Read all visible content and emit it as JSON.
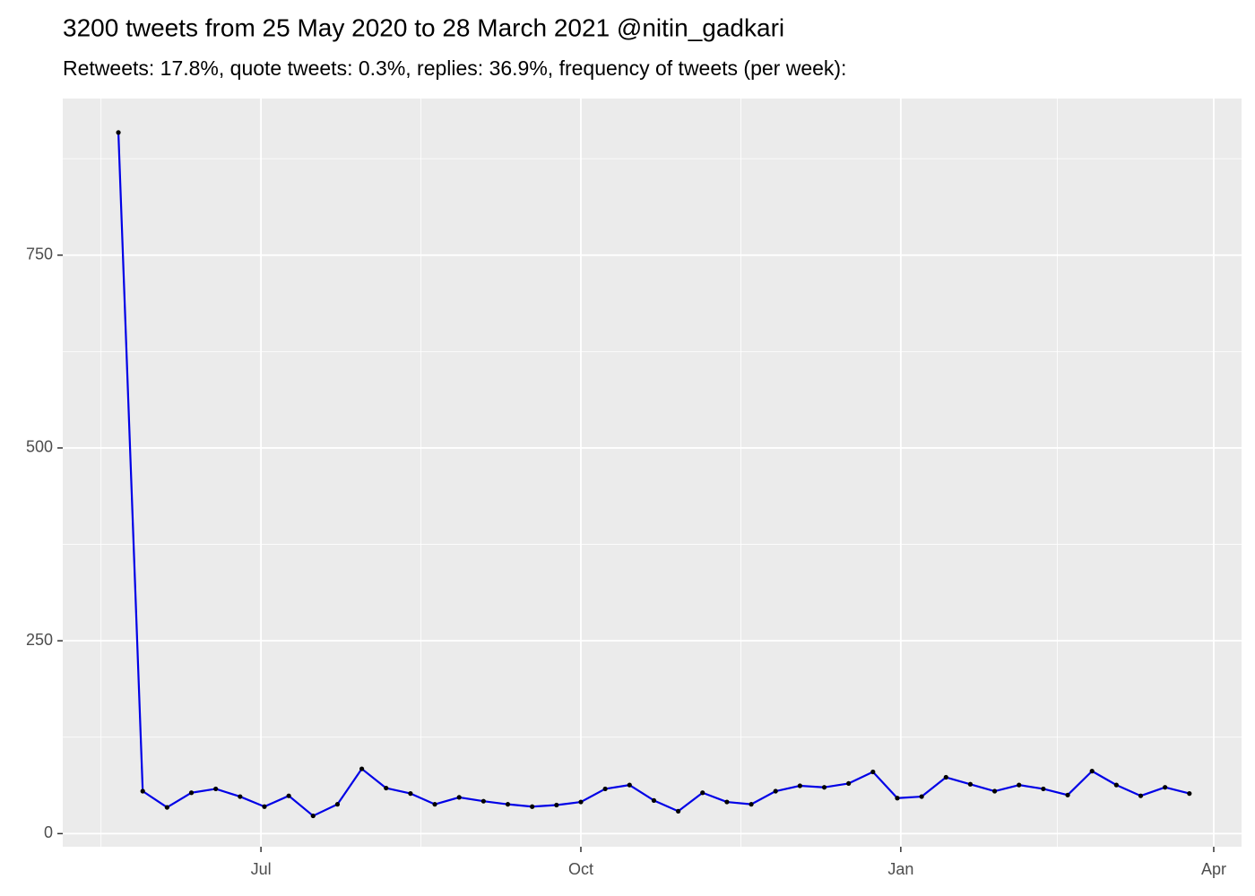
{
  "chart_data": {
    "type": "line",
    "title": "3200 tweets from 25 May 2020 to 28 March 2021 @nitin_gadkari",
    "subtitle": "Retweets: 17.8%, quote tweets: 0.3%, replies: 36.9%, frequency of tweets (per week):",
    "x": [
      "2020-05-21",
      "2020-05-28",
      "2020-06-04",
      "2020-06-11",
      "2020-06-18",
      "2020-06-25",
      "2020-07-02",
      "2020-07-09",
      "2020-07-16",
      "2020-07-23",
      "2020-07-30",
      "2020-08-06",
      "2020-08-13",
      "2020-08-20",
      "2020-08-27",
      "2020-09-03",
      "2020-09-10",
      "2020-09-17",
      "2020-09-24",
      "2020-10-01",
      "2020-10-08",
      "2020-10-15",
      "2020-10-22",
      "2020-10-29",
      "2020-11-05",
      "2020-11-12",
      "2020-11-19",
      "2020-11-26",
      "2020-12-03",
      "2020-12-10",
      "2020-12-17",
      "2020-12-24",
      "2020-12-31",
      "2021-01-07",
      "2021-01-14",
      "2021-01-21",
      "2021-01-28",
      "2021-02-04",
      "2021-02-11",
      "2021-02-18",
      "2021-02-25",
      "2021-03-04",
      "2021-03-11",
      "2021-03-18",
      "2021-03-25"
    ],
    "values": [
      909,
      55,
      34,
      53,
      58,
      48,
      35,
      49,
      23,
      38,
      84,
      59,
      52,
      38,
      47,
      42,
      38,
      35,
      37,
      41,
      58,
      63,
      43,
      29,
      53,
      41,
      38,
      55,
      62,
      60,
      65,
      80,
      46,
      48,
      73,
      64,
      55,
      63,
      58,
      50,
      81,
      63,
      49,
      60,
      52
    ],
    "color": "#0000e6",
    "point_color": "#000000",
    "xlim": [
      "2020-05-05",
      "2021-04-09"
    ],
    "xticks": [
      {
        "value": "2020-07-01",
        "label": "Jul"
      },
      {
        "value": "2020-10-01",
        "label": "Oct"
      },
      {
        "value": "2021-01-01",
        "label": "Jan"
      },
      {
        "value": "2021-04-01",
        "label": "Apr"
      }
    ],
    "ylim": [
      -17,
      953
    ],
    "yticks": [
      0,
      250,
      500,
      750
    ],
    "grid": true
  }
}
